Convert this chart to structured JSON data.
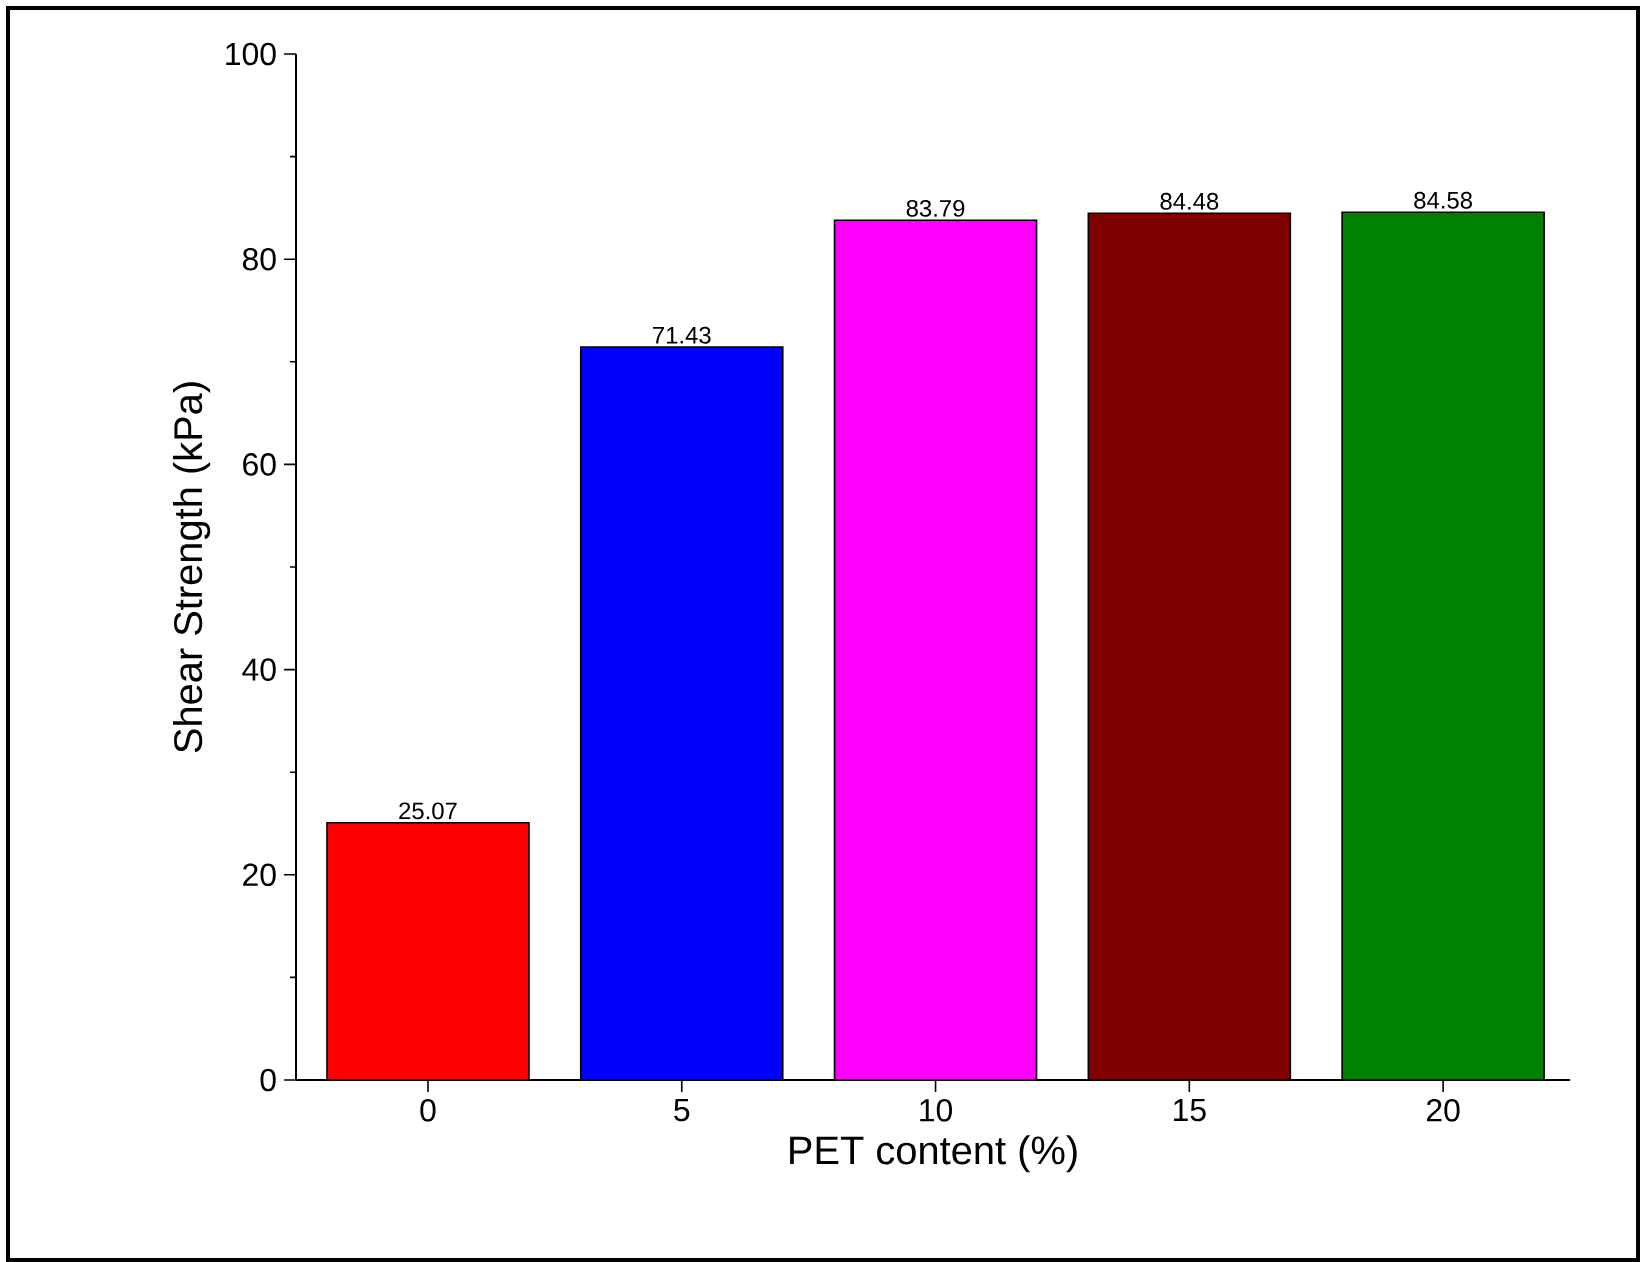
{
  "chart_data": {
    "type": "bar",
    "xlabel": "PET content (%)",
    "ylabel": "Shear Strength (kPa)",
    "categories": [
      "0",
      "5",
      "10",
      "15",
      "20"
    ],
    "values": [
      25.07,
      71.43,
      83.79,
      84.48,
      84.58
    ],
    "colors": [
      "#ff0000",
      "#0000ff",
      "#ff00ff",
      "#800000",
      "#008000"
    ],
    "ylim": [
      0,
      100
    ],
    "yticks": [
      0,
      20,
      40,
      60,
      80,
      100
    ],
    "data_labels": true
  }
}
